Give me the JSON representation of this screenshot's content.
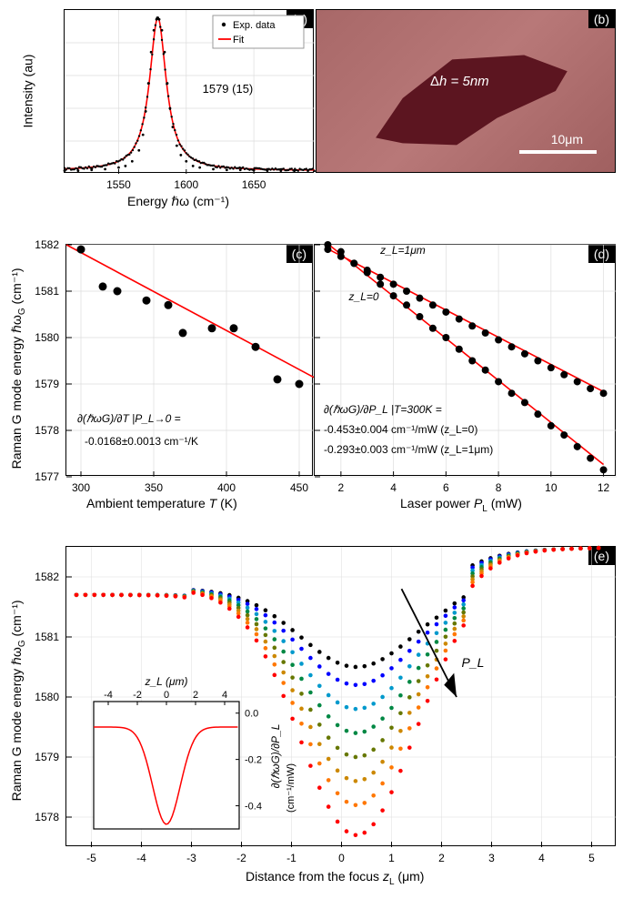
{
  "panelA": {
    "label": "(a)",
    "ylabel": "Intensity (au)",
    "xlabel": "Energy ℏω (cm⁻¹)",
    "xlim": [
      1510,
      1695
    ],
    "ylim": [
      0,
      1.05
    ],
    "xticks": [
      1550,
      1600,
      1650
    ],
    "peak_center": 1579,
    "peak_fwhm": 15,
    "peak_text": "1579 (15)",
    "legend": {
      "exp": "Exp. data",
      "fit": "Fit"
    },
    "fit_color": "#ff0000",
    "data_x": [
      1510,
      1520,
      1530,
      1540,
      1550,
      1555,
      1560,
      1565,
      1568,
      1570,
      1572,
      1574,
      1576,
      1578,
      1579,
      1580,
      1582,
      1584,
      1586,
      1588,
      1590,
      1593,
      1596,
      1600,
      1605,
      1610,
      1620,
      1630,
      1640,
      1650,
      1660,
      1670,
      1680,
      1690
    ],
    "data_y": [
      0.02,
      0.02,
      0.025,
      0.03,
      0.04,
      0.05,
      0.08,
      0.15,
      0.25,
      0.4,
      0.58,
      0.78,
      0.92,
      0.99,
      1.0,
      0.99,
      0.92,
      0.78,
      0.58,
      0.42,
      0.3,
      0.18,
      0.12,
      0.08,
      0.05,
      0.04,
      0.03,
      0.025,
      0.025,
      0.022,
      0.02,
      0.02,
      0.02,
      0.02
    ]
  },
  "panelB": {
    "label": "(b)",
    "dh_text": "Δh = 5nm",
    "scale_text": "10μm"
  },
  "panelC": {
    "label": "(c)",
    "xlabel": "Ambient temperature T (K)",
    "xlim": [
      290,
      460
    ],
    "ylim": [
      1577,
      1582
    ],
    "xticks": [
      300,
      350,
      400,
      450
    ],
    "yticks": [
      1577,
      1578,
      1579,
      1580,
      1581,
      1582
    ],
    "anno1": "∂(ℏωG)/∂T |P_L→0 =",
    "anno2": "-0.0168±0.0013 cm⁻¹/K",
    "data": [
      [
        300,
        1581.9
      ],
      [
        315,
        1581.1
      ],
      [
        325,
        1581.0
      ],
      [
        345,
        1580.8
      ],
      [
        360,
        1580.7
      ],
      [
        370,
        1580.1
      ],
      [
        390,
        1580.2
      ],
      [
        405,
        1580.2
      ],
      [
        420,
        1579.8
      ],
      [
        435,
        1579.1
      ],
      [
        450,
        1579.0
      ]
    ],
    "fit_color": "#ff0000"
  },
  "panelD": {
    "label": "(d)",
    "xlabel": "Laser power P_L (mW)",
    "xlim": [
      1,
      12.5
    ],
    "ylim": [
      1577,
      1582
    ],
    "xticks": [
      2,
      4,
      6,
      8,
      10,
      12
    ],
    "yticks": [
      1577,
      1578,
      1579,
      1580,
      1581,
      1582
    ],
    "label_z0": "z_L=0",
    "label_z1": "z_L=1μm",
    "anno1": "∂(ℏωG)/∂P_L |T=300K =",
    "anno2": "-0.453±0.004 cm⁻¹/mW (z_L=0)",
    "anno3": "-0.293±0.003 cm⁻¹/mW (z_L=1μm)",
    "data_z0": [
      [
        1.5,
        1582.0
      ],
      [
        2,
        1581.85
      ],
      [
        2.5,
        1581.6
      ],
      [
        3,
        1581.4
      ],
      [
        3.5,
        1581.15
      ],
      [
        4,
        1580.9
      ],
      [
        4.5,
        1580.7
      ],
      [
        5,
        1580.45
      ],
      [
        5.5,
        1580.2
      ],
      [
        6,
        1580.0
      ],
      [
        6.5,
        1579.75
      ],
      [
        7,
        1579.5
      ],
      [
        7.5,
        1579.3
      ],
      [
        8,
        1579.05
      ],
      [
        8.5,
        1578.8
      ],
      [
        9,
        1578.6
      ],
      [
        9.5,
        1578.35
      ],
      [
        10,
        1578.1
      ],
      [
        10.5,
        1577.9
      ],
      [
        11,
        1577.65
      ],
      [
        11.5,
        1577.4
      ],
      [
        12,
        1577.15
      ]
    ],
    "data_z1": [
      [
        1.5,
        1581.9
      ],
      [
        2,
        1581.75
      ],
      [
        2.5,
        1581.6
      ],
      [
        3,
        1581.45
      ],
      [
        3.5,
        1581.3
      ],
      [
        4,
        1581.15
      ],
      [
        4.5,
        1581.0
      ],
      [
        5,
        1580.85
      ],
      [
        5.5,
        1580.7
      ],
      [
        6,
        1580.55
      ],
      [
        6.5,
        1580.4
      ],
      [
        7,
        1580.25
      ],
      [
        7.5,
        1580.1
      ],
      [
        8,
        1579.95
      ],
      [
        8.5,
        1579.8
      ],
      [
        9,
        1579.65
      ],
      [
        9.5,
        1579.5
      ],
      [
        10,
        1579.35
      ],
      [
        10.5,
        1579.2
      ],
      [
        11,
        1579.05
      ],
      [
        11.5,
        1578.9
      ],
      [
        12,
        1578.8
      ]
    ],
    "fit_color": "#ff0000"
  },
  "panelE": {
    "label": "(e)",
    "ylabel": "Raman G mode energy ℏωG (cm⁻¹)",
    "xlabel": "Distance from the focus z_L (μm)",
    "xlim": [
      -5.5,
      5.5
    ],
    "ylim": [
      1577.5,
      1582.5
    ],
    "xticks": [
      -5,
      -4,
      -3,
      -2,
      -1,
      0,
      1,
      2,
      3,
      4,
      5
    ],
    "yticks": [
      1578,
      1579,
      1580,
      1581,
      1582
    ],
    "pl_arrow": "P_L",
    "colors": [
      "#000000",
      "#0000ff",
      "#0099cc",
      "#008844",
      "#667700",
      "#cc8800",
      "#ff7700",
      "#ff0000"
    ],
    "min_vals": [
      1580.5,
      1580.2,
      1579.8,
      1579.4,
      1579.0,
      1578.6,
      1578.2,
      1577.7
    ],
    "baseline": 1581.8,
    "inset": {
      "xlabel": "z_L (μm)",
      "ylabel": "∂(ℏωG)/∂P_L",
      "ylabel2": "(cm⁻¹/mW)",
      "xlim": [
        -5,
        5
      ],
      "ylim": [
        -0.5,
        0.05
      ],
      "xticks": [
        -4,
        -2,
        0,
        2,
        4
      ],
      "yticks": [
        0.0,
        -0.2,
        -0.4
      ]
    }
  },
  "shared_ylabel_cd": "Raman G mode energy ℏωG (cm⁻¹)"
}
